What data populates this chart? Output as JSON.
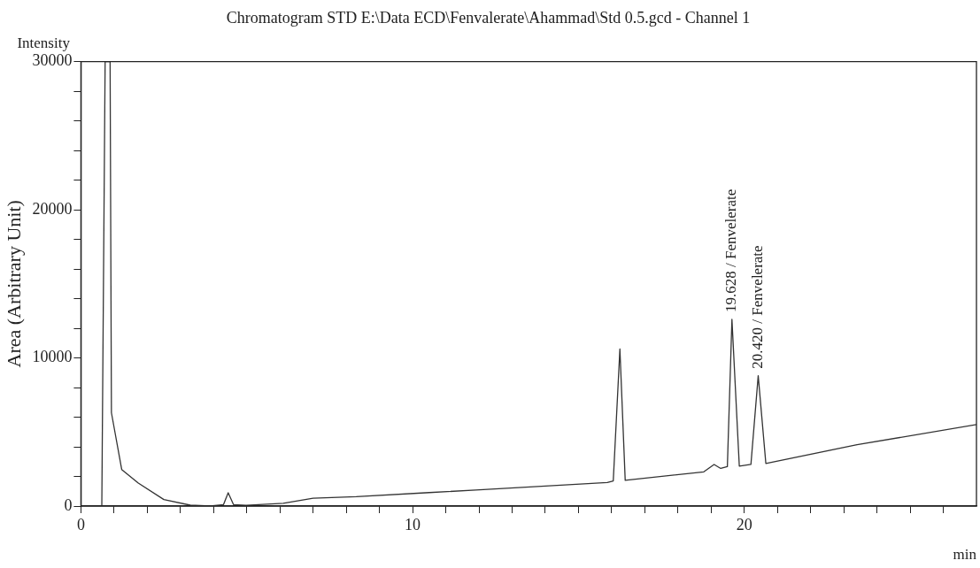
{
  "chart_data": {
    "type": "line",
    "title": "Chromatogram STD E:\\Data ECD\\Fenvalerate\\Ahammad\\Std 0.5.gcd - Channel 1",
    "xlabel": "min",
    "ylabel": "Area (Arbitrary Unit)",
    "annotations": [
      "Intensity",
      {
        "text": "19.628 / Fenvelerate",
        "x": 19.628,
        "y": 12600
      },
      {
        "text": "20.420 / Fenvelerate",
        "x": 20.42,
        "y": 8800
      }
    ],
    "x": [
      0.63,
      0.73,
      0.88,
      0.92,
      1.23,
      1.73,
      2.5,
      3.3,
      3.9,
      4.3,
      4.44,
      4.6,
      4.98,
      6.1,
      7.0,
      8.3,
      10.5,
      11.9,
      15.87,
      16.05,
      16.25,
      16.41,
      18.78,
      19.09,
      19.29,
      19.49,
      19.628,
      19.85,
      20.2,
      20.42,
      20.65,
      23.4,
      27.0
    ],
    "series": [
      {
        "color": "#333333",
        "values": [
          0,
          30000,
          30000,
          6300,
          2470,
          1550,
          440,
          60,
          0,
          100,
          900,
          100,
          50,
          190,
          530,
          630,
          910,
          1080,
          1590,
          1700,
          10600,
          1740,
          2310,
          2810,
          2540,
          2660,
          12600,
          2700,
          2810,
          8800,
          2880,
          4140,
          5500
        ]
      }
    ],
    "xlim": [
      0,
      27
    ],
    "ylim": [
      0,
      30000
    ],
    "xticks": [
      0,
      {
        "value": 1,
        "label": null
      },
      {
        "value": 2,
        "label": null
      },
      {
        "value": 3,
        "label": null
      },
      {
        "value": 4,
        "label": null
      },
      {
        "value": 5,
        "label": null
      },
      {
        "value": 6,
        "label": null
      },
      {
        "value": 7,
        "label": null
      },
      {
        "value": 8,
        "label": null
      },
      {
        "value": 9,
        "label": null
      },
      10,
      {
        "value": 11,
        "label": null
      },
      {
        "value": 12,
        "label": null
      },
      {
        "value": 13,
        "label": null
      },
      {
        "value": 14,
        "label": null
      },
      {
        "value": 15,
        "label": null
      },
      {
        "value": 16,
        "label": null
      },
      {
        "value": 17,
        "label": null
      },
      {
        "value": 18,
        "label": null
      },
      {
        "value": 19,
        "label": null
      },
      20,
      {
        "value": 21,
        "label": null
      },
      {
        "value": 22,
        "label": null
      },
      {
        "value": 23,
        "label": null
      },
      {
        "value": 24,
        "label": null
      },
      {
        "value": 25,
        "label": null
      },
      {
        "value": 26,
        "label": null
      }
    ],
    "yticks": [
      0,
      {
        "value": 2000,
        "label": null
      },
      {
        "value": 4000,
        "label": null
      },
      {
        "value": 6000,
        "label": null
      },
      {
        "value": 8000,
        "label": null
      },
      10000,
      {
        "value": 12000,
        "label": null
      },
      {
        "value": 14000,
        "label": null
      },
      {
        "value": 16000,
        "label": null
      },
      {
        "value": 18000,
        "label": null
      },
      20000,
      {
        "value": 22000,
        "label": null
      },
      {
        "value": 24000,
        "label": null
      },
      {
        "value": 26000,
        "label": null
      },
      {
        "value": 28000,
        "label": null
      },
      30000
    ],
    "grid": false,
    "legend": false,
    "marker": "none",
    "line_style": "solid"
  }
}
